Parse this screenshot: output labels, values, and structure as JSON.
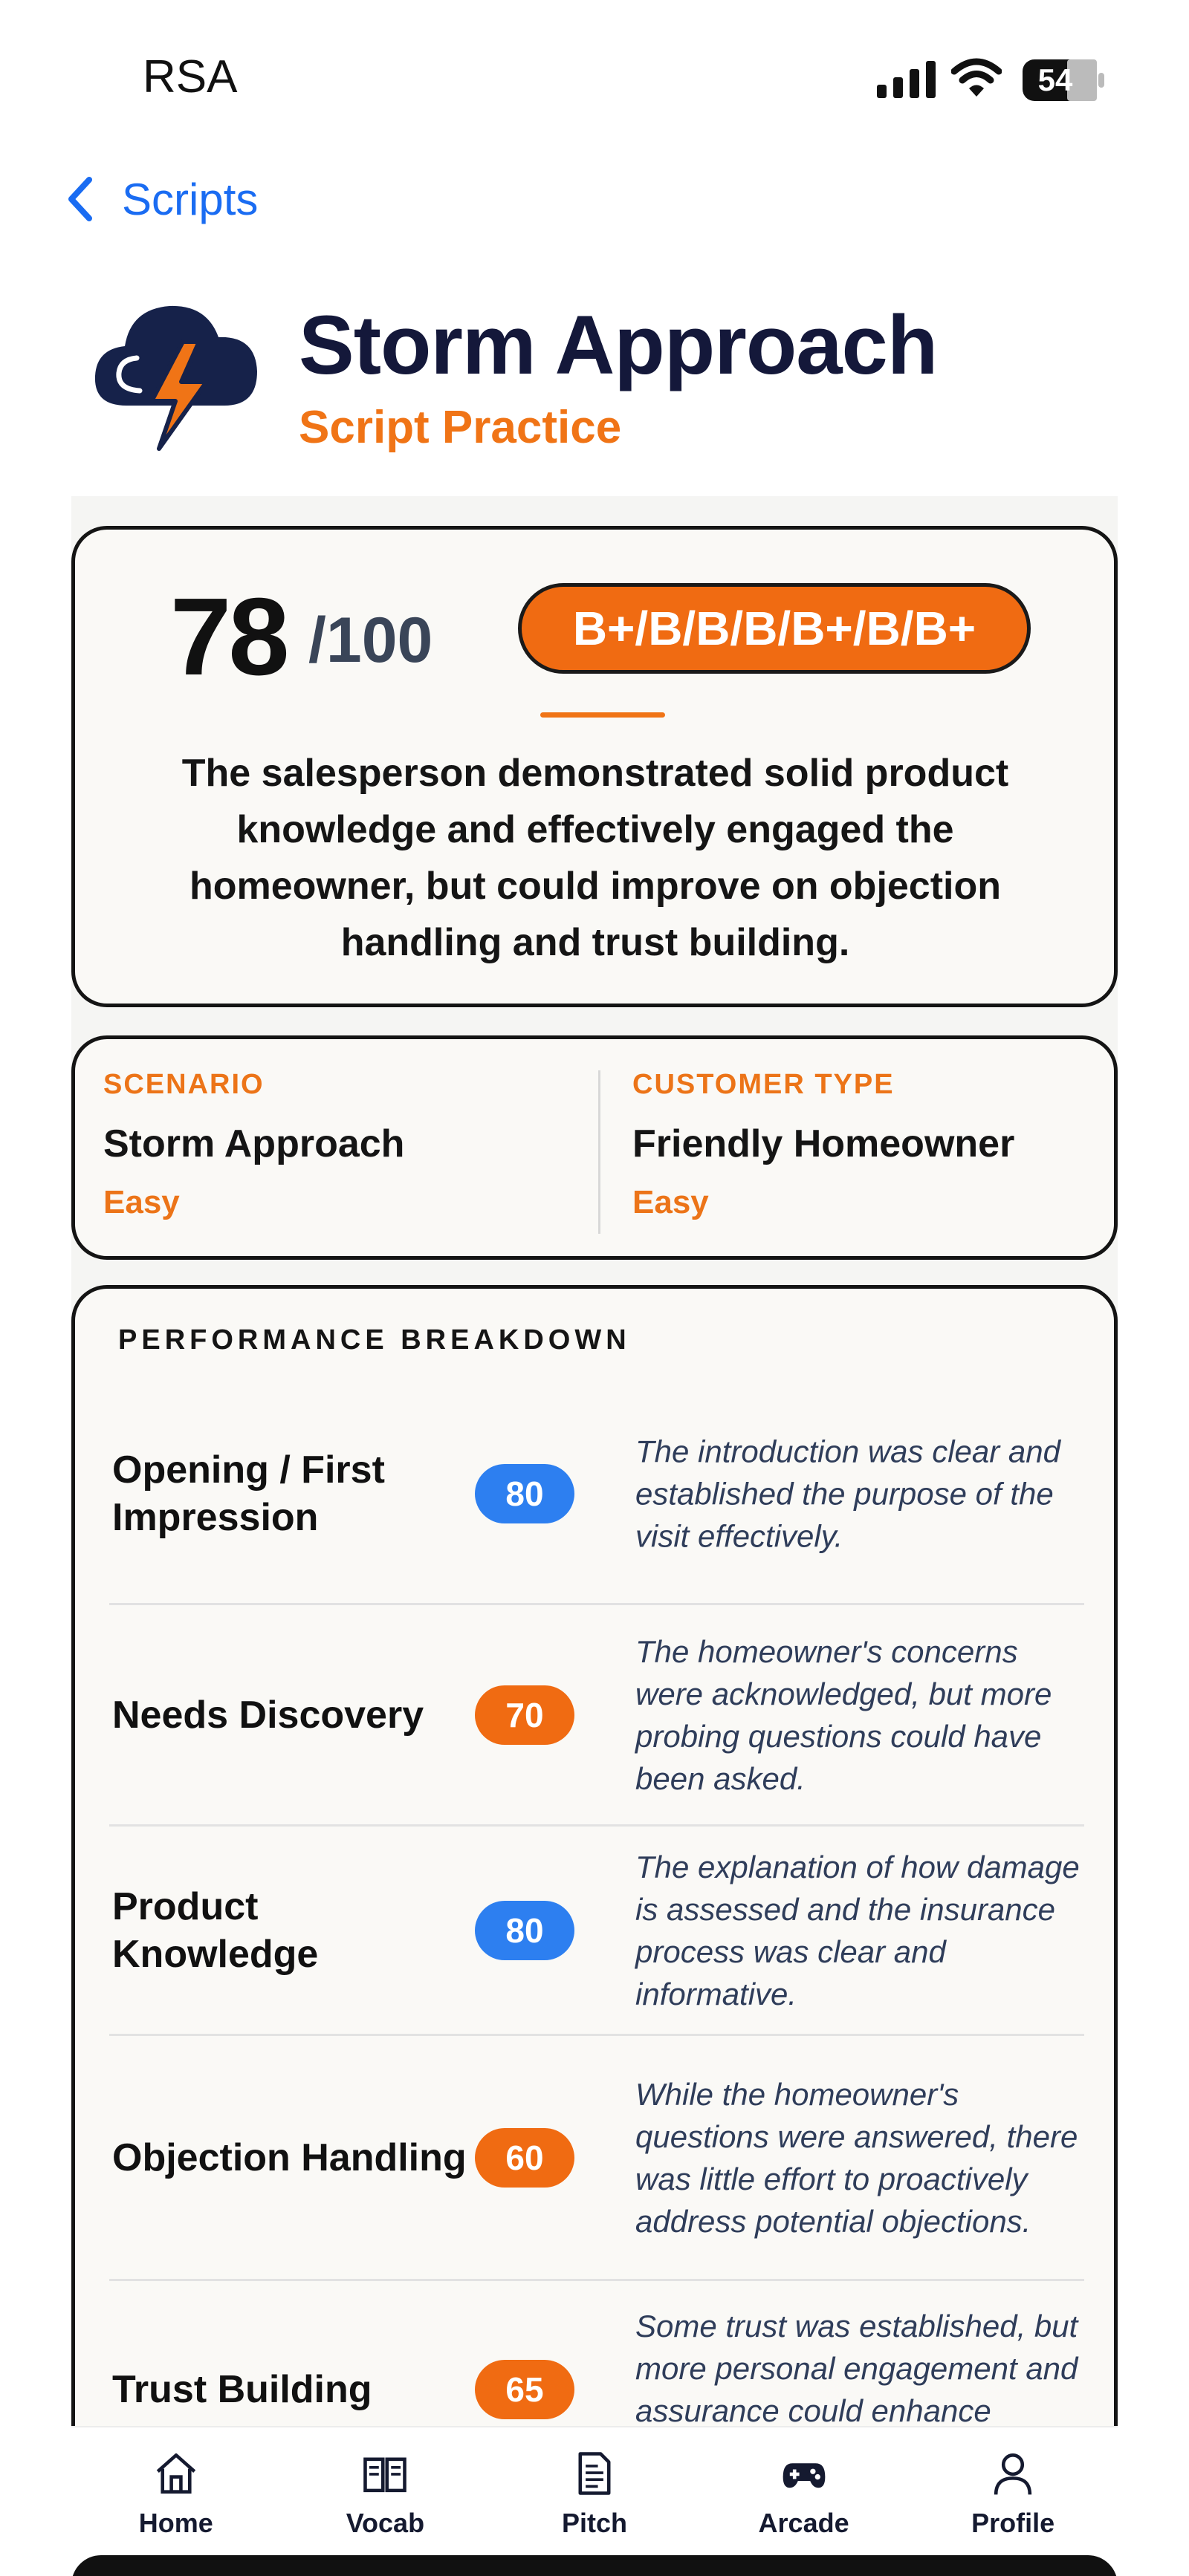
{
  "status_bar": {
    "carrier": "RSA",
    "battery": "54"
  },
  "nav": {
    "back_label": "Scripts"
  },
  "header": {
    "title": "Storm Approach",
    "subtitle": "Script Practice"
  },
  "score": {
    "value": "78",
    "out_of": "/100",
    "grades": "B+/B/B/B/B+/B/B+",
    "summary": "The salesperson demonstrated solid product knowledge and effectively engaged the homeowner, but could improve on objection handling and trust building."
  },
  "info": {
    "scenario_label": "SCENARIO",
    "scenario_value": "Storm Approach",
    "scenario_level": "Easy",
    "customer_label": "CUSTOMER TYPE",
    "customer_value": "Friendly Homeowner",
    "customer_level": "Easy"
  },
  "performance": {
    "heading": "PERFORMANCE BREAKDOWN",
    "rows": [
      {
        "name": "Opening / First Impression",
        "score": "80",
        "color": "#2d7ff0",
        "note": "The introduction was clear and established the purpose of the visit effectively."
      },
      {
        "name": "Needs Discovery",
        "score": "70",
        "color": "#f06b12",
        "note": "The homeowner's concerns were acknowledged, but more probing questions could have been asked."
      },
      {
        "name": "Product Knowledge",
        "score": "80",
        "color": "#2d7ff0",
        "note": "The explanation of how damage is assessed and the insurance process was clear and informative."
      },
      {
        "name": "Objection Handling",
        "score": "60",
        "color": "#f06b12",
        "note": "While the homeowner's questions were answered, there was little effort to proactively address potential objections."
      },
      {
        "name": "Trust Building",
        "score": "65",
        "color": "#f06b12",
        "note": "Some trust was established, but more personal engagement and assurance could enhance credibility."
      }
    ]
  },
  "tabs": [
    {
      "label": "Home",
      "icon": "home-icon"
    },
    {
      "label": "Vocab",
      "icon": "book-icon"
    },
    {
      "label": "Pitch",
      "icon": "document-icon"
    },
    {
      "label": "Arcade",
      "icon": "gamepad-icon"
    },
    {
      "label": "Profile",
      "icon": "profile-icon"
    }
  ],
  "colors": {
    "accent_orange": "#f07416",
    "accent_blue": "#2d7ff0",
    "link_blue": "#1a6cf2",
    "title_navy": "#14183a"
  }
}
